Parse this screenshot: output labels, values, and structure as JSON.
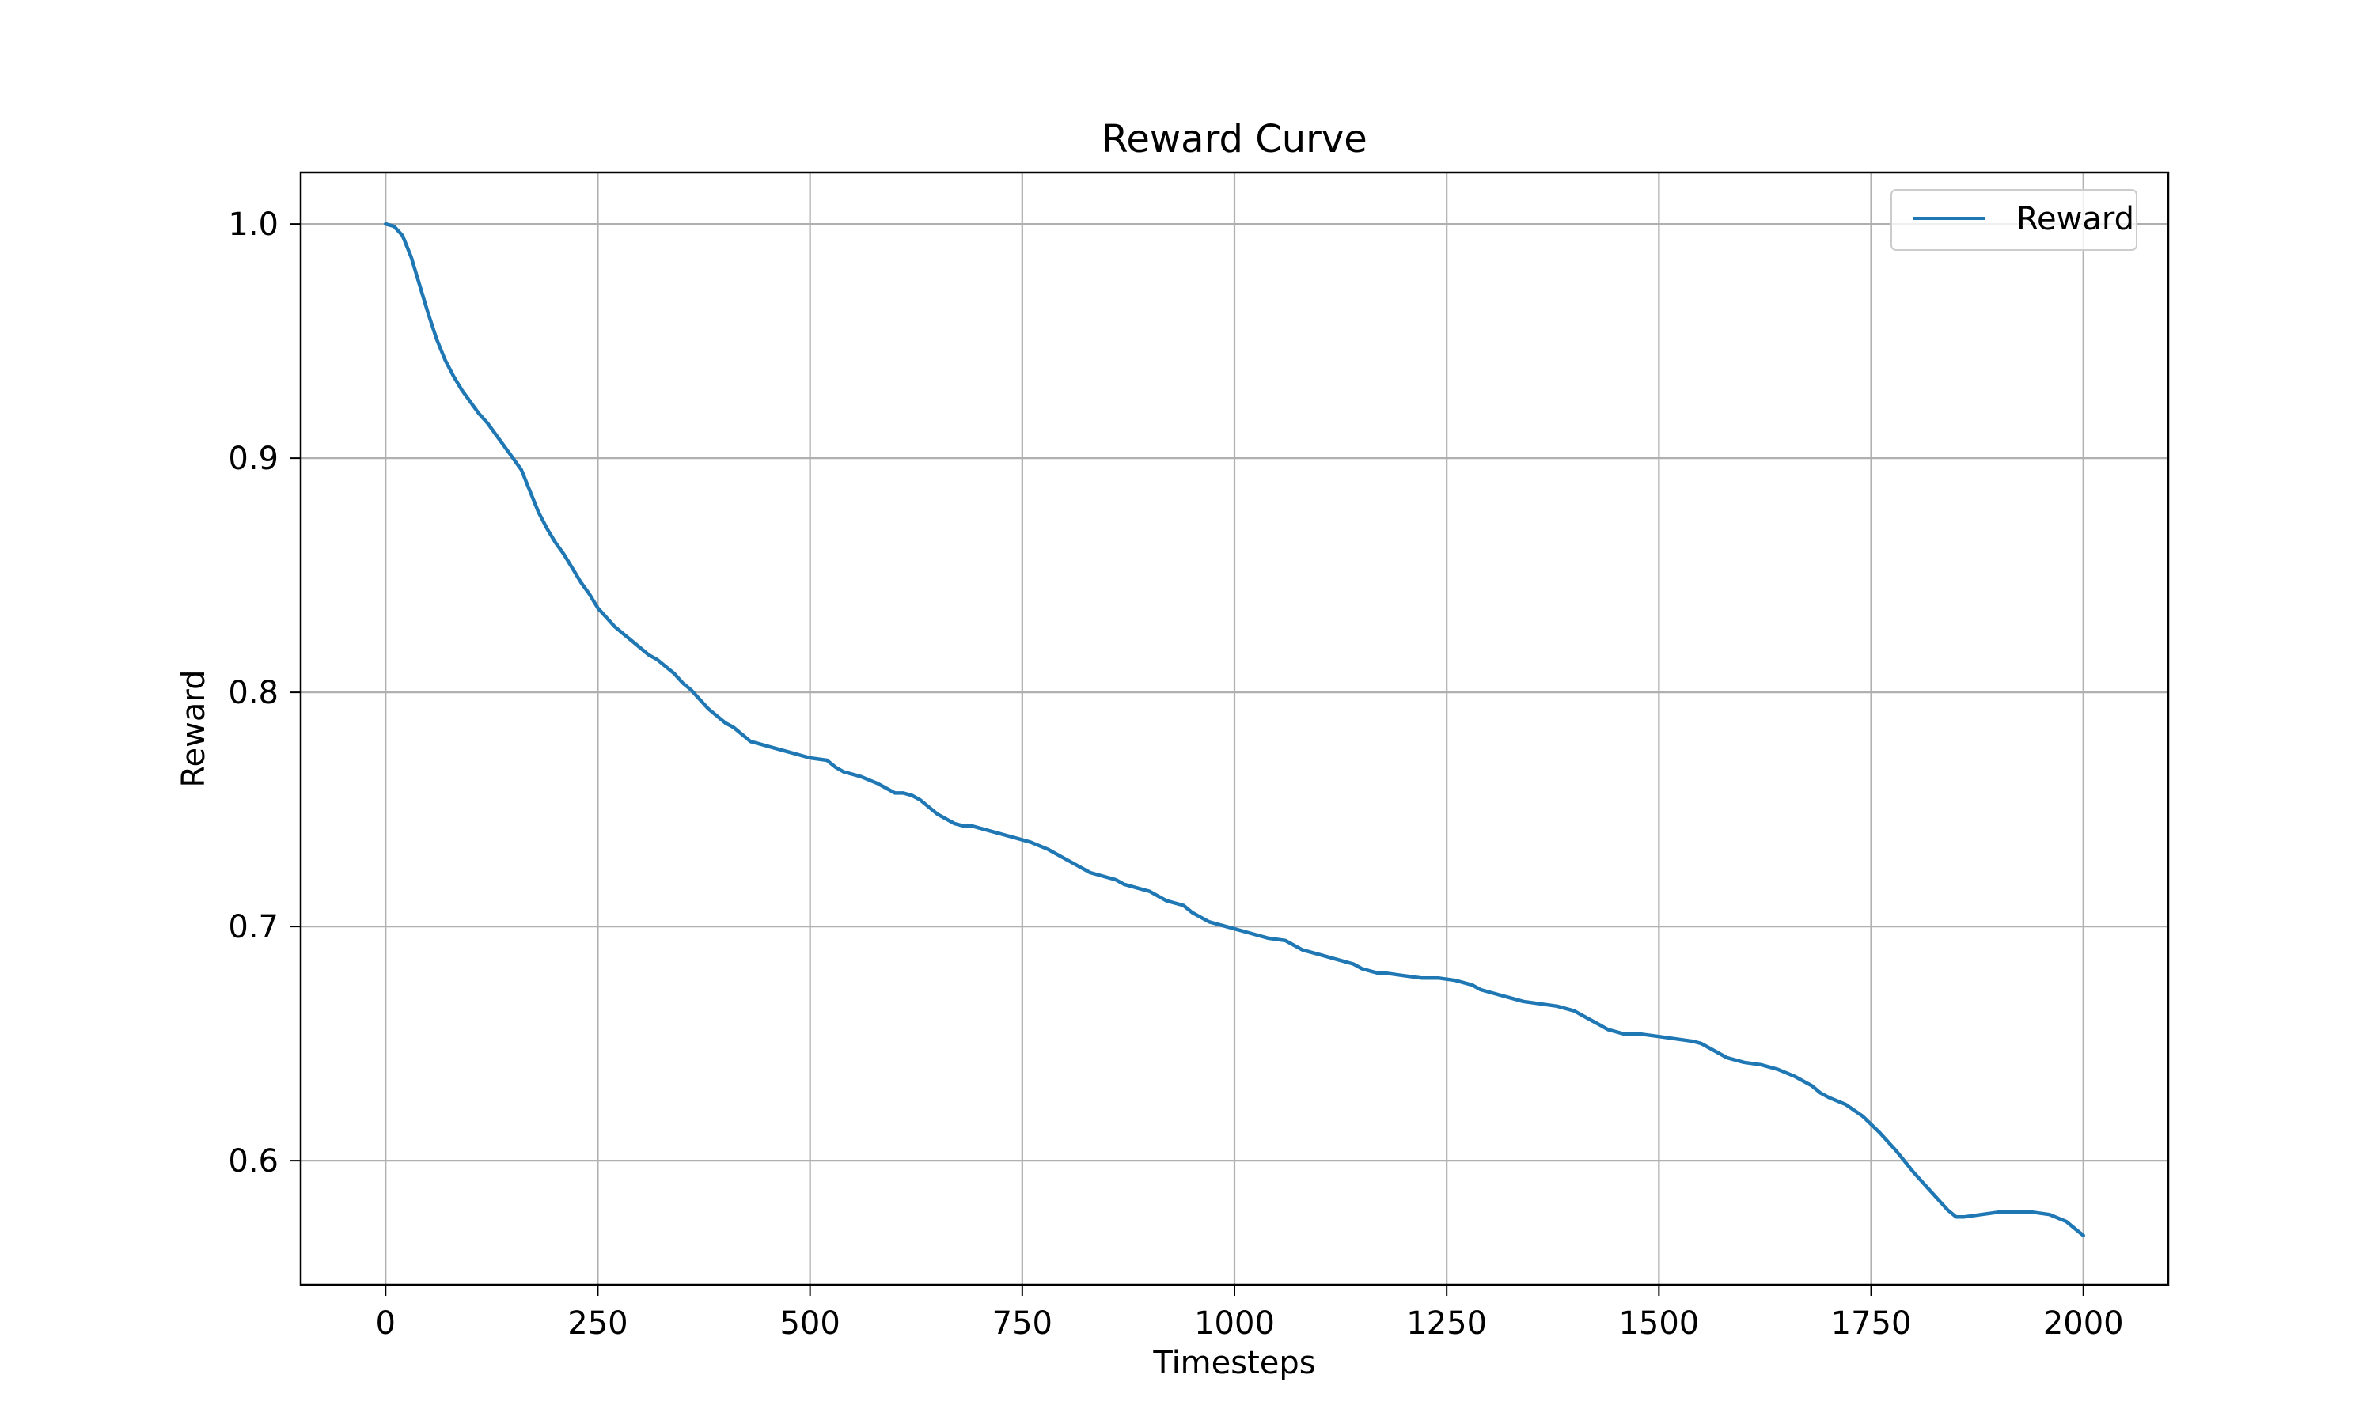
{
  "chart_data": {
    "type": "line",
    "title": "Reward Curve",
    "xlabel": "Timesteps",
    "ylabel": "Reward",
    "xlim": [
      -100,
      2100
    ],
    "ylim": [
      0.547,
      1.022
    ],
    "xticks": [
      0,
      250,
      500,
      750,
      1000,
      1250,
      1500,
      1750,
      2000
    ],
    "yticks": [
      0.6,
      0.7,
      0.8,
      0.9,
      1.0
    ],
    "xtick_labels": [
      "0",
      "250",
      "500",
      "750",
      "1000",
      "1250",
      "1500",
      "1750",
      "2000"
    ],
    "ytick_labels": [
      "0.6",
      "0.7",
      "0.8",
      "0.9",
      "1.0"
    ],
    "grid": true,
    "legend": "top-right",
    "series": [
      {
        "name": "Reward",
        "color": "#1f77b4",
        "x": [
          0,
          10,
          20,
          30,
          40,
          50,
          60,
          70,
          80,
          90,
          100,
          110,
          120,
          130,
          140,
          150,
          160,
          170,
          180,
          190,
          200,
          210,
          220,
          230,
          240,
          250,
          260,
          270,
          280,
          290,
          300,
          310,
          320,
          330,
          340,
          350,
          360,
          370,
          380,
          390,
          400,
          410,
          420,
          430,
          440,
          450,
          460,
          480,
          500,
          520,
          530,
          540,
          550,
          560,
          580,
          600,
          610,
          620,
          630,
          640,
          650,
          660,
          670,
          680,
          690,
          700,
          720,
          740,
          750,
          760,
          780,
          800,
          810,
          820,
          830,
          840,
          850,
          860,
          870,
          880,
          890,
          900,
          920,
          940,
          950,
          960,
          970,
          980,
          1000,
          1020,
          1040,
          1060,
          1080,
          1100,
          1120,
          1140,
          1150,
          1160,
          1170,
          1180,
          1200,
          1220,
          1240,
          1260,
          1280,
          1290,
          1300,
          1320,
          1340,
          1360,
          1380,
          1400,
          1410,
          1420,
          1430,
          1440,
          1450,
          1460,
          1480,
          1500,
          1520,
          1540,
          1550,
          1560,
          1570,
          1580,
          1600,
          1620,
          1640,
          1660,
          1680,
          1690,
          1700,
          1720,
          1740,
          1760,
          1780,
          1800,
          1820,
          1840,
          1850,
          1860,
          1880,
          1900,
          1920,
          1940,
          1960,
          1980,
          1990,
          2000
        ],
        "y": [
          1.0,
          0.999,
          0.995,
          0.986,
          0.974,
          0.962,
          0.951,
          0.942,
          0.935,
          0.929,
          0.924,
          0.919,
          0.915,
          0.91,
          0.905,
          0.9,
          0.895,
          0.886,
          0.877,
          0.87,
          0.864,
          0.859,
          0.853,
          0.847,
          0.842,
          0.836,
          0.832,
          0.828,
          0.825,
          0.822,
          0.819,
          0.816,
          0.814,
          0.811,
          0.808,
          0.804,
          0.801,
          0.797,
          0.793,
          0.79,
          0.787,
          0.785,
          0.782,
          0.779,
          0.778,
          0.777,
          0.776,
          0.774,
          0.772,
          0.771,
          0.768,
          0.766,
          0.765,
          0.764,
          0.761,
          0.757,
          0.757,
          0.756,
          0.754,
          0.751,
          0.748,
          0.746,
          0.744,
          0.743,
          0.743,
          0.742,
          0.74,
          0.738,
          0.737,
          0.736,
          0.733,
          0.729,
          0.727,
          0.725,
          0.723,
          0.722,
          0.721,
          0.72,
          0.718,
          0.717,
          0.716,
          0.715,
          0.711,
          0.709,
          0.706,
          0.704,
          0.702,
          0.701,
          0.699,
          0.697,
          0.695,
          0.694,
          0.69,
          0.688,
          0.686,
          0.684,
          0.682,
          0.681,
          0.68,
          0.68,
          0.679,
          0.678,
          0.678,
          0.677,
          0.675,
          0.673,
          0.672,
          0.67,
          0.668,
          0.667,
          0.666,
          0.664,
          0.662,
          0.66,
          0.658,
          0.656,
          0.655,
          0.654,
          0.654,
          0.653,
          0.652,
          0.651,
          0.65,
          0.648,
          0.646,
          0.644,
          0.642,
          0.641,
          0.639,
          0.636,
          0.632,
          0.629,
          0.627,
          0.624,
          0.619,
          0.612,
          0.604,
          0.595,
          0.587,
          0.579,
          0.576,
          0.576,
          0.577,
          0.578,
          0.578,
          0.578,
          0.577,
          0.574,
          0.571,
          0.568
        ]
      }
    ]
  }
}
